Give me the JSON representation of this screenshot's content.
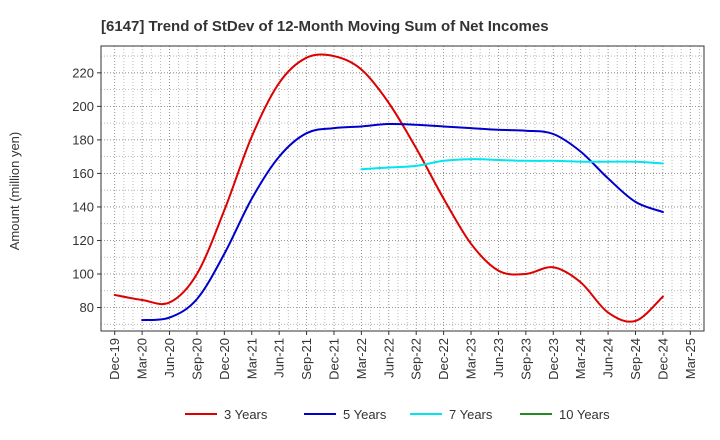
{
  "chart_data": {
    "type": "line",
    "title": "[6147]  Trend of StDev of 12-Month Moving Sum of Net Incomes",
    "ylabel": "Amount (million yen)",
    "xlabel": "",
    "ylim": [
      66,
      236
    ],
    "yticks": [
      80,
      100,
      120,
      140,
      160,
      180,
      200,
      220
    ],
    "x_tick_labels": [
      "Dec-19",
      "Mar-20",
      "Jun-20",
      "Sep-20",
      "Dec-20",
      "Mar-21",
      "Jun-21",
      "Sep-21",
      "Dec-21",
      "Mar-22",
      "Jun-22",
      "Sep-22",
      "Dec-22",
      "Mar-23",
      "Jun-23",
      "Sep-23",
      "Dec-23",
      "Mar-24",
      "Jun-24",
      "Sep-24",
      "Dec-24",
      "Mar-25"
    ],
    "grid": true,
    "legend_position": "bottom",
    "series": [
      {
        "name": "3 Years",
        "color": "#dd0000",
        "points": [
          {
            "x": "Dec-19",
            "y": 87.5
          },
          {
            "x": "Mar-20",
            "y": 84.5
          },
          {
            "x": "Jun-20",
            "y": 83
          },
          {
            "x": "Sep-20",
            "y": 100
          },
          {
            "x": "Dec-20",
            "y": 138
          },
          {
            "x": "Mar-21",
            "y": 182
          },
          {
            "x": "Jun-21",
            "y": 214
          },
          {
            "x": "Sep-21",
            "y": 229
          },
          {
            "x": "Dec-21",
            "y": 230
          },
          {
            "x": "Mar-22",
            "y": 222
          },
          {
            "x": "Jun-22",
            "y": 202
          },
          {
            "x": "Sep-22",
            "y": 175
          },
          {
            "x": "Dec-22",
            "y": 145
          },
          {
            "x": "Mar-23",
            "y": 118
          },
          {
            "x": "Jun-23",
            "y": 102
          },
          {
            "x": "Sep-23",
            "y": 100
          },
          {
            "x": "Dec-23",
            "y": 104
          },
          {
            "x": "Mar-24",
            "y": 95
          },
          {
            "x": "Jun-24",
            "y": 77
          },
          {
            "x": "Sep-24",
            "y": 72
          },
          {
            "x": "Dec-24",
            "y": 86.5
          }
        ]
      },
      {
        "name": "5 Years",
        "color": "#0000cc",
        "points": [
          {
            "x": "Mar-20",
            "y": 72.5
          },
          {
            "x": "Jun-20",
            "y": 74
          },
          {
            "x": "Sep-20",
            "y": 85
          },
          {
            "x": "Dec-20",
            "y": 112
          },
          {
            "x": "Mar-21",
            "y": 145
          },
          {
            "x": "Jun-21",
            "y": 170
          },
          {
            "x": "Sep-21",
            "y": 184
          },
          {
            "x": "Dec-21",
            "y": 187
          },
          {
            "x": "Mar-22",
            "y": 188
          },
          {
            "x": "Jun-22",
            "y": 189.5
          },
          {
            "x": "Sep-22",
            "y": 189
          },
          {
            "x": "Dec-22",
            "y": 188
          },
          {
            "x": "Mar-23",
            "y": 187
          },
          {
            "x": "Jun-23",
            "y": 186
          },
          {
            "x": "Sep-23",
            "y": 185.5
          },
          {
            "x": "Dec-23",
            "y": 183.5
          },
          {
            "x": "Mar-24",
            "y": 173
          },
          {
            "x": "Jun-24",
            "y": 157
          },
          {
            "x": "Sep-24",
            "y": 143
          },
          {
            "x": "Dec-24",
            "y": 137
          }
        ]
      },
      {
        "name": "7 Years",
        "color": "#00e5ee",
        "points": [
          {
            "x": "Mar-22",
            "y": 162.5
          },
          {
            "x": "Jun-22",
            "y": 163.5
          },
          {
            "x": "Sep-22",
            "y": 164.5
          },
          {
            "x": "Dec-22",
            "y": 167.5
          },
          {
            "x": "Mar-23",
            "y": 168.5
          },
          {
            "x": "Jun-23",
            "y": 168
          },
          {
            "x": "Sep-23",
            "y": 167.5
          },
          {
            "x": "Dec-23",
            "y": 167.5
          },
          {
            "x": "Mar-24",
            "y": 167
          },
          {
            "x": "Jun-24",
            "y": 167
          },
          {
            "x": "Sep-24",
            "y": 167
          },
          {
            "x": "Dec-24",
            "y": 166
          }
        ]
      },
      {
        "name": "10 Years",
        "color": "#228b22",
        "points": []
      }
    ]
  }
}
